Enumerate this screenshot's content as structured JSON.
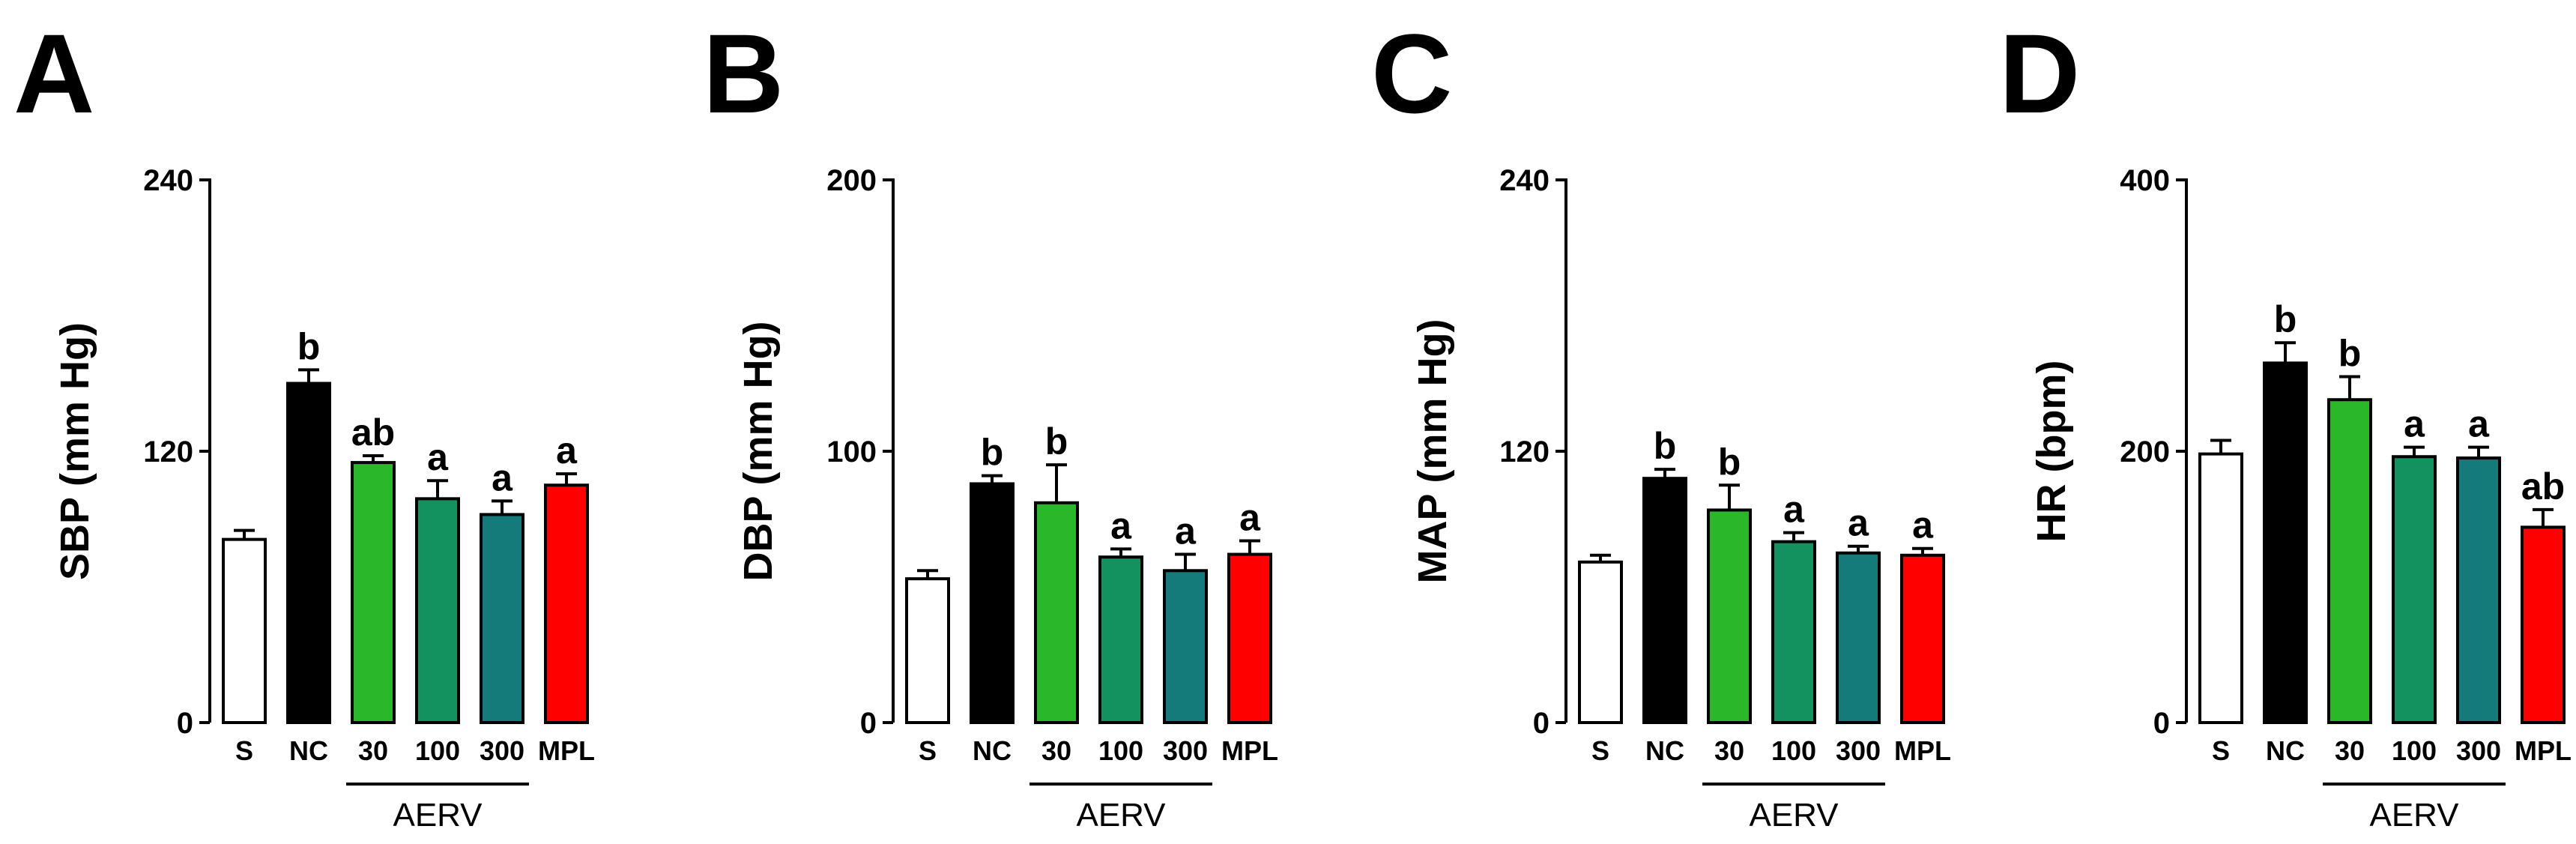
{
  "chart_data": [
    {
      "type": "bar",
      "panel": "A",
      "ylabel": "SBP (mm Hg)",
      "ylim": [
        0,
        240
      ],
      "yticks": [
        "0",
        "120",
        "240"
      ],
      "categories": [
        "S",
        "NC",
        "30",
        "100",
        "300",
        "MPL"
      ],
      "values": [
        81,
        150,
        115,
        99,
        92,
        105
      ],
      "errors": [
        4,
        6,
        3,
        8,
        6,
        5
      ],
      "annotations": [
        "",
        "b",
        "ab",
        "a",
        "a",
        "a"
      ],
      "colors": [
        "#ffffff",
        "#000000",
        "#2ab82a",
        "#13915f",
        "#147a7a",
        "#ff0000"
      ],
      "group_label": "AERV"
    },
    {
      "type": "bar",
      "panel": "B",
      "ylabel": "DBP (mm Hg)",
      "ylim": [
        0,
        200
      ],
      "yticks": [
        "0",
        "100",
        "200"
      ],
      "categories": [
        "S",
        "NC",
        "30",
        "100",
        "300",
        "MPL"
      ],
      "values": [
        53,
        88,
        81,
        61,
        56,
        62
      ],
      "errors": [
        3,
        3,
        14,
        3,
        6,
        5
      ],
      "annotations": [
        "",
        "b",
        "b",
        "a",
        "a",
        "a"
      ],
      "colors": [
        "#ffffff",
        "#000000",
        "#2ab82a",
        "#13915f",
        "#147a7a",
        "#ff0000"
      ],
      "group_label": "AERV"
    },
    {
      "type": "bar",
      "panel": "C",
      "ylabel": "MAP (mm Hg)",
      "ylim": [
        0,
        240
      ],
      "yticks": [
        "0",
        "120",
        "240"
      ],
      "categories": [
        "S",
        "NC",
        "30",
        "100",
        "300",
        "MPL"
      ],
      "values": [
        71,
        108,
        94,
        80,
        75,
        74
      ],
      "errors": [
        3,
        4,
        11,
        4,
        3,
        3
      ],
      "annotations": [
        "",
        "b",
        "b",
        "a",
        "a",
        "a"
      ],
      "colors": [
        "#ffffff",
        "#000000",
        "#2ab82a",
        "#13915f",
        "#147a7a",
        "#ff0000"
      ],
      "group_label": "AERV"
    },
    {
      "type": "bar",
      "panel": "D",
      "ylabel": "HR (bpm)",
      "ylim": [
        0,
        400
      ],
      "yticks": [
        "0",
        "200",
        "400"
      ],
      "categories": [
        "S",
        "NC",
        "30",
        "100",
        "300",
        "MPL"
      ],
      "values": [
        198,
        265,
        238,
        196,
        195,
        144
      ],
      "errors": [
        10,
        15,
        17,
        7,
        8,
        13
      ],
      "annotations": [
        "",
        "b",
        "b",
        "a",
        "a",
        "ab"
      ],
      "colors": [
        "#ffffff",
        "#000000",
        "#2ab82a",
        "#13915f",
        "#147a7a",
        "#ff0000"
      ],
      "group_label": "AERV"
    }
  ]
}
